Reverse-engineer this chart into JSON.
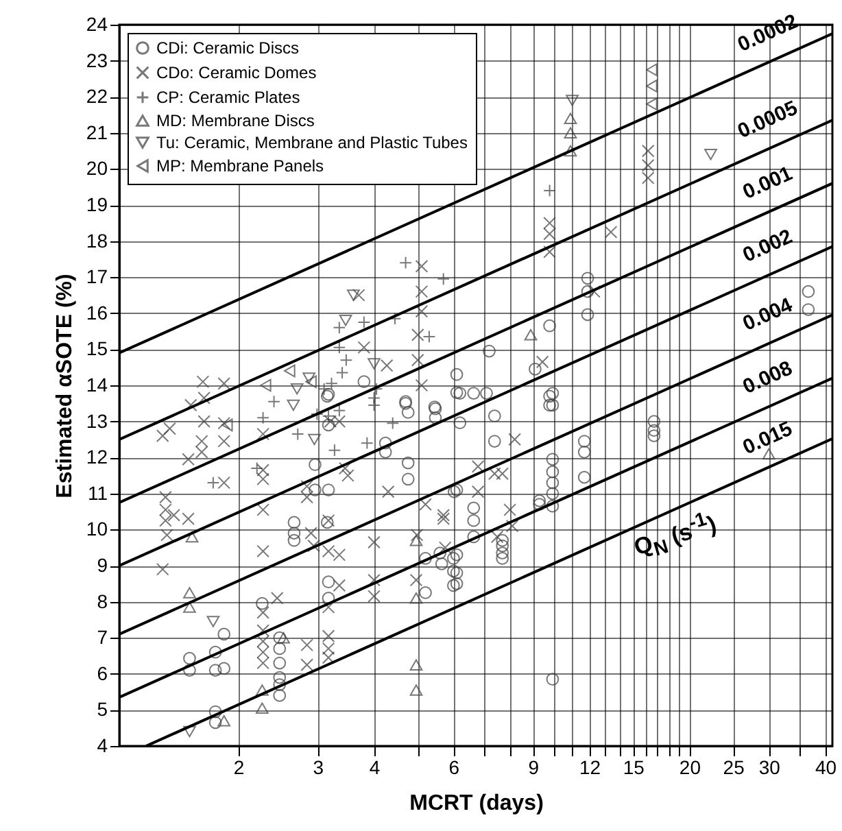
{
  "chart_data": {
    "type": "scatter",
    "xlabel": "MCRT (days)",
    "ylabel": "Estimated αSOTE (%)",
    "log": "x",
    "xlim": [
      1.09,
      41.5
    ],
    "ylim": [
      4,
      24
    ],
    "xticks": [
      2,
      3,
      4,
      {
        "value": 5,
        "label": null
      },
      6,
      {
        "value": 7,
        "label": null
      },
      {
        "value": 8,
        "label": null
      },
      9,
      {
        "value": 10,
        "label": null
      },
      {
        "value": 11,
        "label": null
      },
      12,
      {
        "value": 13,
        "label": null
      },
      {
        "value": 14,
        "label": null
      },
      15,
      {
        "value": 16,
        "label": null
      },
      {
        "value": 17,
        "label": null
      },
      {
        "value": 18,
        "label": null
      },
      {
        "value": 19,
        "label": null
      },
      20,
      25,
      30,
      {
        "value": 35,
        "label": null
      },
      40
    ],
    "yticks": [
      4,
      5,
      6,
      7,
      8,
      9,
      10,
      11,
      12,
      13,
      14,
      15,
      16,
      17,
      18,
      19,
      20,
      21,
      22,
      23,
      24
    ],
    "grid": true,
    "legend": "top left",
    "annotations": [
      "Q$_{N}$ (s$^{-1}$)"
    ],
    "series": [
      {
        "name": "CDi: Ceramic Discs",
        "type": "scatter",
        "marker": "circle",
        "color": "#404040",
        "x": [
          1.56,
          1.56,
          1.78,
          1.78,
          1.86,
          1.86,
          1.78,
          1.78,
          2.26,
          2.47,
          2.47,
          2.47,
          2.47,
          2.47,
          2.47,
          2.66,
          2.66,
          2.66,
          2.96,
          2.96,
          3.17,
          3.17,
          3.15,
          3.17,
          3.17,
          3.15,
          4.24,
          4.24,
          4.76,
          4.76,
          4.7,
          4.76,
          5.47,
          5.47,
          6.02,
          5.2,
          5.2,
          5.6,
          5.65,
          6.0,
          6.0,
          6.0,
          3.17,
          3.8,
          4.7,
          5.45,
          6.1,
          6.1,
          6.2,
          6.65,
          7.1,
          6.2,
          7.4,
          7.4,
          6.1,
          6.65,
          6.65,
          6.65,
          7.7,
          7.7,
          7.7,
          7.7,
          6.1,
          6.1,
          6.1,
          9.3,
          9.3,
          9.95,
          9.95,
          9.95,
          9.95,
          9.95,
          9.95,
          9.95,
          11.7,
          11.7,
          11.7,
          16.7,
          16.7,
          16.7,
          9.95,
          11.9,
          11.9,
          11.9,
          9.8,
          9.1,
          7.2,
          9.8,
          9.8,
          36.7,
          36.7
        ],
        "values": [
          6.43,
          6.1,
          6.6,
          6.1,
          7.1,
          6.15,
          4.95,
          4.65,
          7.95,
          7.0,
          6.7,
          6.3,
          5.9,
          5.7,
          5.4,
          10.2,
          9.9,
          9.7,
          11.8,
          11.1,
          11.1,
          12.9,
          10.2,
          8.55,
          8.1,
          13.7,
          12.4,
          12.15,
          11.85,
          11.4,
          13.5,
          13.25,
          13.35,
          13.1,
          11.05,
          9.2,
          8.25,
          9.35,
          9.05,
          9.2,
          8.85,
          8.45,
          13.75,
          14.1,
          13.55,
          13.4,
          14.3,
          13.8,
          13.78,
          13.78,
          13.78,
          12.96,
          13.15,
          12.45,
          11.1,
          10.6,
          10.25,
          9.8,
          9.7,
          9.55,
          9.35,
          9.2,
          9.3,
          8.8,
          8.5,
          10.8,
          10.7,
          13.78,
          13.45,
          11.95,
          11.6,
          11.3,
          11.0,
          10.65,
          12.45,
          12.15,
          11.45,
          13.0,
          12.75,
          12.6,
          5.85,
          16.97,
          16.6,
          15.96,
          15.65,
          14.45,
          14.95,
          13.7,
          13.45,
          16.6,
          16.1
        ]
      },
      {
        "name": "CDo: Ceramic Domes",
        "type": "scatter",
        "marker": "cross",
        "color": "#404040",
        "x": [
          1.36,
          1.36,
          1.41,
          1.68,
          1.86,
          1.38,
          1.38,
          1.44,
          1.55,
          1.38,
          1.39,
          1.55,
          1.66,
          1.66,
          1.68,
          1.86,
          1.86,
          2.27,
          2.27,
          2.27,
          2.27,
          2.27,
          2.27,
          2.44,
          2.27,
          2.27,
          2.27,
          2.27,
          2.84,
          2.84,
          2.84,
          2.84,
          2.9,
          2.94,
          3.17,
          3.17,
          3.35,
          3.35,
          3.17,
          3.17,
          3.17,
          3.17,
          3.2,
          3.35,
          3.5,
          3.45,
          4.0,
          4.0,
          4.0,
          4.3,
          4.98,
          4.96,
          5.2,
          5.7,
          5.7,
          5.75,
          1.57,
          1.67,
          1.86,
          3.8,
          4.27,
          5.1,
          5.1,
          5.1,
          5.0,
          5.0,
          5.1,
          3.7,
          9.8,
          9.8,
          9.8,
          13.4,
          16.2,
          16.2,
          16.2,
          9.45,
          12.3,
          8.2,
          6.8,
          6.8,
          7.4,
          7.7,
          8.0,
          8.1,
          7.5
        ],
        "values": [
          8.9,
          12.6,
          12.8,
          13.0,
          12.95,
          10.9,
          10.55,
          10.4,
          10.3,
          10.25,
          9.85,
          11.95,
          12.45,
          12.15,
          13.65,
          12.45,
          11.3,
          12.65,
          11.65,
          11.4,
          10.55,
          9.4,
          7.7,
          8.1,
          7.2,
          6.9,
          6.6,
          6.3,
          6.8,
          6.25,
          11.2,
          10.9,
          9.9,
          9.55,
          10.25,
          9.4,
          9.3,
          8.45,
          7.85,
          7.05,
          6.7,
          6.45,
          13.0,
          13.0,
          11.5,
          11.7,
          9.65,
          8.6,
          8.15,
          11.05,
          9.85,
          8.6,
          10.7,
          10.4,
          10.3,
          9.5,
          13.45,
          14.1,
          14.05,
          15.05,
          14.55,
          17.3,
          16.6,
          16.05,
          15.4,
          14.7,
          14.0,
          16.5,
          18.5,
          18.2,
          17.7,
          18.25,
          19.75,
          20.1,
          20.5,
          14.65,
          16.6,
          12.5,
          11.75,
          11.05,
          11.55,
          11.55,
          10.55,
          10.1,
          9.8
        ]
      },
      {
        "name": "CP: Ceramic Plates",
        "type": "scatter",
        "marker": "plus",
        "color": "#404040",
        "x": [
          1.76,
          2.27,
          2.2,
          2.71,
          2.99,
          3.17,
          3.35,
          3.27,
          3.86,
          4.4,
          4.0,
          4.05,
          2.4,
          3.1,
          3.22,
          3.4,
          3.47,
          3.35,
          3.35,
          3.8,
          4.45,
          4.7,
          5.7,
          5.3,
          4.0,
          9.8
        ],
        "values": [
          11.3,
          13.1,
          11.7,
          12.65,
          13.2,
          13.15,
          13.3,
          12.2,
          12.4,
          12.95,
          13.65,
          13.9,
          13.55,
          13.9,
          14.05,
          14.35,
          14.7,
          15.05,
          15.6,
          15.75,
          15.85,
          17.4,
          16.95,
          15.35,
          13.45,
          19.4
        ]
      },
      {
        "name": "MD: Membrane Discs",
        "type": "scatter",
        "marker": "triangle",
        "color": "#404040",
        "x": [
          1.56,
          1.56,
          1.58,
          1.86,
          2.26,
          2.26,
          2.52,
          4.96,
          4.96,
          4.96,
          4.96,
          8.9,
          10.9,
          10.9,
          10.9,
          30
        ],
        "values": [
          8.25,
          7.85,
          9.8,
          4.7,
          5.55,
          5.05,
          7.0,
          9.7,
          8.1,
          6.25,
          5.55,
          15.4,
          20.5,
          21.0,
          21.4,
          12.1
        ]
      },
      {
        "name": "Tu: Ceramic, Membrane and Plastic Tubes",
        "type": "scatter",
        "marker": "triangle-down",
        "color": "#404040",
        "x": [
          1.56,
          1.76,
          2.65,
          2.95,
          3.6,
          2.87,
          2.7,
          3.46,
          4.0,
          11.0,
          22.3
        ],
        "values": [
          4.4,
          7.45,
          13.45,
          12.5,
          16.5,
          14.2,
          13.9,
          15.8,
          14.6,
          21.9,
          20.4
        ]
      },
      {
        "name": "MP: Membrane Panels",
        "type": "scatter",
        "marker": "triangle-left",
        "color": "#404040",
        "x": [
          2.6,
          2.3,
          2.9,
          1.89,
          16.5,
          16.5,
          16.5
        ],
        "values": [
          14.4,
          14.0,
          14.1,
          12.9,
          22.75,
          22.3,
          21.8
        ]
      },
      {
        "name": "0.0002",
        "type": "line",
        "color": "#000000",
        "x": [
          1.09,
          41.5
        ],
        "values": [
          14.9,
          23.75
        ]
      },
      {
        "name": "0.0005",
        "type": "line",
        "color": "#000000",
        "x": [
          1.09,
          41.5
        ],
        "values": [
          12.5,
          21.35
        ]
      },
      {
        "name": "0.001",
        "type": "line",
        "color": "#000000",
        "x": [
          1.09,
          41.5
        ],
        "values": [
          10.75,
          19.6
        ]
      },
      {
        "name": "0.002",
        "type": "line",
        "color": "#000000",
        "x": [
          1.09,
          41.5
        ],
        "values": [
          9.0,
          17.85
        ]
      },
      {
        "name": "0.004",
        "type": "line",
        "color": "#000000",
        "x": [
          1.09,
          41.5
        ],
        "values": [
          7.1,
          15.95
        ]
      },
      {
        "name": "0.008",
        "type": "line",
        "color": "#000000",
        "x": [
          1.09,
          41.5
        ],
        "values": [
          5.35,
          14.2
        ]
      },
      {
        "name": "0.015",
        "type": "line",
        "color": "#000000",
        "x": [
          1.25,
          41.5
        ],
        "values": [
          4.0,
          12.52
        ]
      }
    ]
  }
}
